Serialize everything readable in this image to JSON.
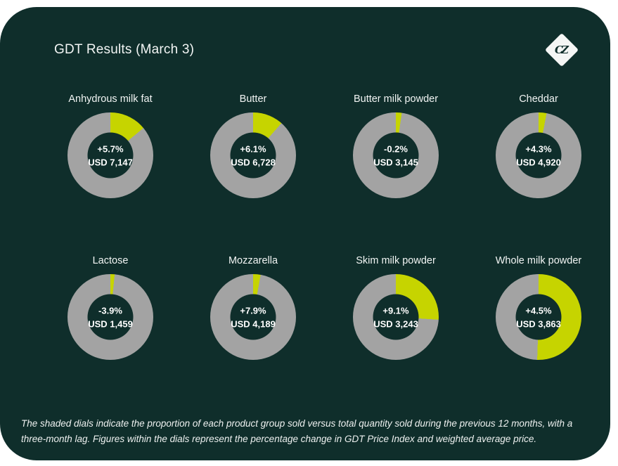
{
  "header": {
    "title": "GDT Results (March 3)",
    "logo_text": "CZ"
  },
  "colors": {
    "background": "#0f2e2b",
    "share_segment": "#c6d400",
    "remainder_segment": "#a3a3a3",
    "text": "#f2f5f4"
  },
  "dials": [
    {
      "label": "Anhydrous milk fat",
      "change": "+5.7%",
      "price": "USD 7,147",
      "share_pct": 14
    },
    {
      "label": "Butter",
      "change": "+6.1%",
      "price": "USD 6,728",
      "share_pct": 11.5
    },
    {
      "label": "Butter milk powder",
      "change": "-0.2%",
      "price": "USD 3,145",
      "share_pct": 2.2
    },
    {
      "label": "Cheddar",
      "change": "+4.3%",
      "price": "USD 4,920",
      "share_pct": 3
    },
    {
      "label": "Lactose",
      "change": "-3.9%",
      "price": "USD 1,459",
      "share_pct": 1.6
    },
    {
      "label": "Mozzarella",
      "change": "+7.9%",
      "price": "USD 4,189",
      "share_pct": 2.8
    },
    {
      "label": "Skim milk powder",
      "change": "+9.1%",
      "price": "USD 3,243",
      "share_pct": 26
    },
    {
      "label": "Whole milk powder",
      "change": "+4.5%",
      "price": "USD 3,863",
      "share_pct": 50.5
    }
  ],
  "footer": {
    "note": "The shaded dials indicate the proportion of each product group sold versus total quantity sold during the previous 12 months, with a three-month lag. Figures within the dials represent the percentage change in GDT Price Index and weighted average price."
  },
  "chart_data": {
    "type": "pie",
    "subtype": "donut",
    "layout": "4x2 grid of donut dials",
    "title": "GDT Results (March 3)",
    "legend_position": "none",
    "donuts": [
      {
        "label": "Anhydrous milk fat",
        "center_lines": [
          "+5.7%",
          "USD 7,147"
        ],
        "price_index_change_pct": 5.7,
        "weighted_avg_price_usd": 7147,
        "shaded_share_pct": 14,
        "values": [
          14,
          86
        ]
      },
      {
        "label": "Butter",
        "center_lines": [
          "+6.1%",
          "USD 6,728"
        ],
        "price_index_change_pct": 6.1,
        "weighted_avg_price_usd": 6728,
        "shaded_share_pct": 11.5,
        "values": [
          11.5,
          88.5
        ]
      },
      {
        "label": "Butter milk powder",
        "center_lines": [
          "-0.2%",
          "USD 3,145"
        ],
        "price_index_change_pct": -0.2,
        "weighted_avg_price_usd": 3145,
        "shaded_share_pct": 2.2,
        "values": [
          2.2,
          97.8
        ]
      },
      {
        "label": "Cheddar",
        "center_lines": [
          "+4.3%",
          "USD 4,920"
        ],
        "price_index_change_pct": 4.3,
        "weighted_avg_price_usd": 4920,
        "shaded_share_pct": 3,
        "values": [
          3,
          97
        ]
      },
      {
        "label": "Lactose",
        "center_lines": [
          "-3.9%",
          "USD 1,459"
        ],
        "price_index_change_pct": -3.9,
        "weighted_avg_price_usd": 1459,
        "shaded_share_pct": 1.6,
        "values": [
          1.6,
          98.4
        ]
      },
      {
        "label": "Mozzarella",
        "center_lines": [
          "+7.9%",
          "USD 4,189"
        ],
        "price_index_change_pct": 7.9,
        "weighted_avg_price_usd": 4189,
        "shaded_share_pct": 2.8,
        "values": [
          2.8,
          97.2
        ]
      },
      {
        "label": "Skim milk powder",
        "center_lines": [
          "+9.1%",
          "USD 3,243"
        ],
        "price_index_change_pct": 9.1,
        "weighted_avg_price_usd": 3243,
        "shaded_share_pct": 26,
        "values": [
          26,
          74
        ]
      },
      {
        "label": "Whole milk powder",
        "center_lines": [
          "+4.5%",
          "USD 3,863"
        ],
        "price_index_change_pct": 4.5,
        "weighted_avg_price_usd": 3863,
        "shaded_share_pct": 50.5,
        "values": [
          50.5,
          49.5
        ]
      }
    ],
    "note": "The shaded dials indicate the proportion of each product group sold versus total quantity sold during the previous 12 months, with a three-month lag. Figures within the dials represent the percentage change in GDT Price Index and weighted average price."
  }
}
